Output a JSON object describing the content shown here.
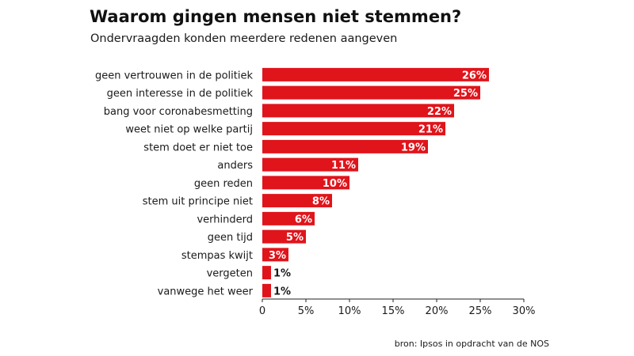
{
  "header": {
    "title": "Waarom gingen mensen niet stemmen?",
    "subtitle": "Ondervraagden konden meerdere redenen aangeven"
  },
  "footer": {
    "source": "bron: Ipsos in opdracht van de NOS"
  },
  "colors": {
    "bar": "#e0141b",
    "text": "#1a1a1a",
    "axis": "#222222"
  },
  "chart_data": {
    "type": "bar",
    "orientation": "horizontal",
    "categories": [
      "geen vertrouwen in de politiek",
      "geen interesse in de politiek",
      "bang voor coronabesmetting",
      "weet niet op welke partij",
      "stem doet er niet toe",
      "anders",
      "geen reden",
      "stem uit principe niet",
      "verhinderd",
      "geen tijd",
      "stempas kwijt",
      "vergeten",
      "vanwege het weer"
    ],
    "values": [
      26,
      25,
      22,
      21,
      19,
      11,
      10,
      8,
      6,
      5,
      3,
      1,
      1
    ],
    "value_labels": [
      "26%",
      "25%",
      "22%",
      "21%",
      "19%",
      "11%",
      "10%",
      "8%",
      "6%",
      "5%",
      "3%",
      "1%",
      "1%"
    ],
    "xlim": [
      0,
      30
    ],
    "xticks": [
      0,
      5,
      10,
      15,
      20,
      25,
      30
    ],
    "xtick_labels": [
      "0",
      "5%",
      "10%",
      "15%",
      "20%",
      "25%",
      "30%"
    ],
    "grid": false
  }
}
